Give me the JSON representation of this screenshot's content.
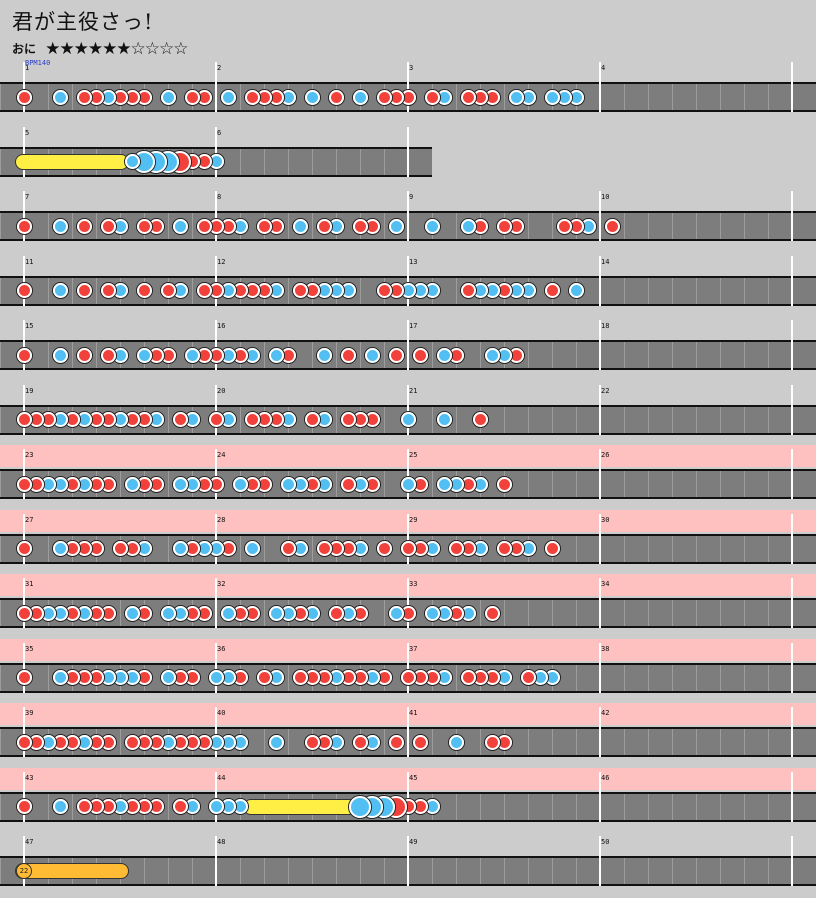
{
  "song": {
    "title": "君が主役さっ!",
    "difficulty": "おに",
    "stars": "★★★★★★☆☆☆☆"
  },
  "colors": {
    "don": "#f2413a",
    "ka": "#52bff2",
    "roll": "#ffee44",
    "balloon": "#ffbb33",
    "gogo": "#ffc0c0",
    "lane": "#7d7d7d"
  },
  "bpm_label": "BPM140",
  "balloon_count": "22",
  "rows": [
    {
      "gogo": false,
      "measures": [
        1,
        2,
        3,
        4
      ],
      "len": 4,
      "notes": "d..k.ddkddd.k.dd.k.dddk.k.d.k.ddd.dk.ddd.kk.kkk."
    },
    {
      "gogo": false,
      "measures": [
        5,
        6
      ],
      "len": 2,
      "big": true,
      "notes": "r.......eBKKKDddk."
    },
    {
      "gogo": false,
      "measures": [
        7,
        8,
        9,
        10
      ],
      "len": 4,
      "notes": "d..k.d.dk.dd.k.dddk.dd.k.dk.dd.k..k..kd.dd...ddk.d"
    },
    {
      "gogo": false,
      "measures": [
        11,
        12,
        13,
        14
      ],
      "len": 4,
      "notes": "d..k.d.dk.d.dk.ddkdddk.ddkkk..ddkkk..dkkdkk.d.k."
    },
    {
      "gogo": false,
      "measures": [
        15,
        16,
        17,
        18
      ],
      "len": 4,
      "notes": "d..k.d.dk.kdd.kddkdk.kd..k.d.k.d.d.kd..kkd."
    },
    {
      "gogo": false,
      "measures": [
        19,
        20,
        21,
        22
      ],
      "len": 4,
      "notes": "dddkdkddkddk.dk.dk.dddk.dk.ddd..k..k..d"
    },
    {
      "gogo": true,
      "measures": [
        23,
        24,
        25,
        26
      ],
      "len": 4,
      "notes": "ddkkdkdd.kdd.kkdd.kdd.kkdk.dkd..kd.kkdk.d"
    },
    {
      "gogo": true,
      "measures": [
        27,
        28,
        29,
        30
      ],
      "len": 4,
      "notes": "d..kddd.ddk..kdkkd.k..dk.dddk.d.ddk.ddk.ddk.d"
    },
    {
      "gogo": true,
      "measures": [
        31,
        32,
        33,
        34
      ],
      "len": 4,
      "notes": "ddkkdkdd.kd.kkdd.kdd.kkdk.dkd..kd.kkdk.d"
    },
    {
      "gogo": true,
      "measures": [
        35,
        36,
        37,
        38
      ],
      "len": 4,
      "notes": "d..kdddkkkd.kdd.kkd.dk.dddkddkd.dddk.dddk.dkk"
    },
    {
      "gogo": true,
      "measures": [
        39,
        40,
        41,
        42
      ],
      "len": 4,
      "notes": "ddkddkdd.dddkdddkkk..k..ddk.dk.d.d..k..dd"
    },
    {
      "gogo": true,
      "measures": [
        43,
        44,
        45,
        46
      ],
      "len": 4,
      "notes": "d..k.dddkddd.dk.kkkr.......eKKKDddk."
    },
    {
      "gogo": false,
      "measures": [
        47,
        48,
        49,
        50
      ],
      "len": 4,
      "notes": "b.......e"
    }
  ]
}
